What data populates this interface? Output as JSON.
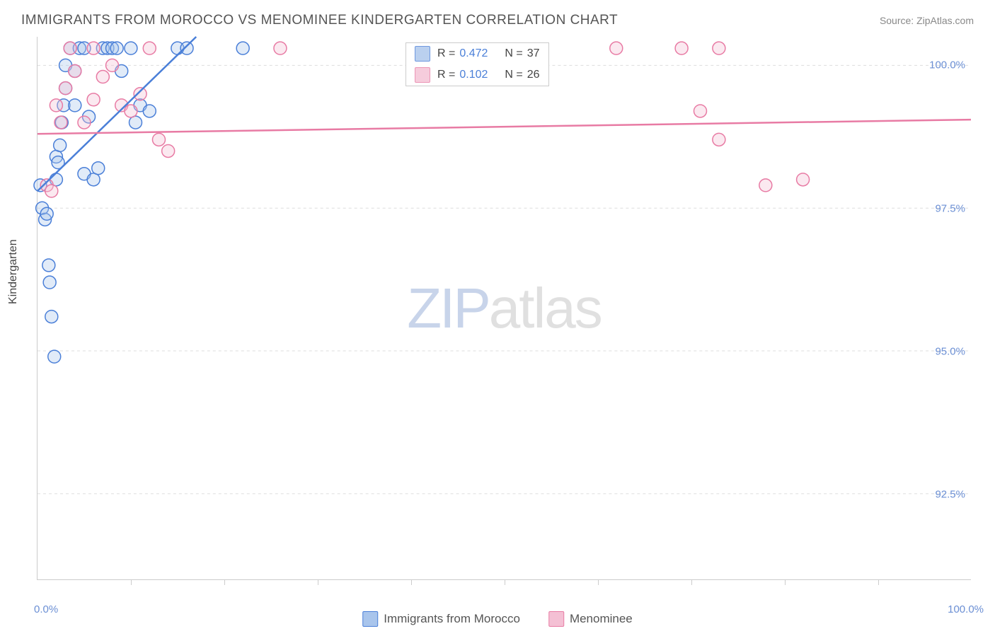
{
  "title": "IMMIGRANTS FROM MOROCCO VS MENOMINEE KINDERGARTEN CORRELATION CHART",
  "source": "Source: ZipAtlas.com",
  "ylabel": "Kindergarten",
  "watermark": {
    "part1": "ZIP",
    "part2": "atlas"
  },
  "chart": {
    "type": "scatter",
    "xlim": [
      0,
      100
    ],
    "ylim": [
      91.0,
      100.5
    ],
    "yticks": [
      {
        "value": 100.0,
        "label": "100.0%"
      },
      {
        "value": 97.5,
        "label": "97.5%"
      },
      {
        "value": 95.0,
        "label": "95.0%"
      },
      {
        "value": 92.5,
        "label": "92.5%"
      }
    ],
    "xaxis": {
      "min_label": "0.0%",
      "max_label": "100.0%",
      "tick_positions": [
        10,
        20,
        30,
        40,
        50,
        60,
        70,
        80,
        90
      ]
    },
    "background_color": "#ffffff",
    "grid_color": "#dddddd",
    "marker_radius": 9,
    "marker_stroke_width": 1.5,
    "marker_fill_opacity": 0.35,
    "line_width": 2.5,
    "series": [
      {
        "name": "Immigrants from Morocco",
        "color_stroke": "#4a7fd8",
        "color_fill": "#a9c5ec",
        "R": "0.472",
        "N": "37",
        "trend": {
          "x1": 0,
          "y1": 97.8,
          "x2": 17,
          "y2": 100.5
        },
        "points": [
          [
            0.3,
            97.9
          ],
          [
            0.5,
            97.5
          ],
          [
            0.8,
            97.3
          ],
          [
            1.0,
            97.4
          ],
          [
            1.2,
            96.5
          ],
          [
            1.3,
            96.2
          ],
          [
            1.5,
            95.6
          ],
          [
            1.8,
            94.9
          ],
          [
            2.0,
            98.0
          ],
          [
            2.0,
            98.4
          ],
          [
            2.2,
            98.3
          ],
          [
            2.4,
            98.6
          ],
          [
            2.6,
            99.0
          ],
          [
            2.8,
            99.3
          ],
          [
            3.0,
            99.6
          ],
          [
            3.0,
            100.0
          ],
          [
            3.5,
            100.3
          ],
          [
            4.0,
            99.3
          ],
          [
            4.0,
            99.9
          ],
          [
            4.5,
            100.3
          ],
          [
            5.0,
            98.1
          ],
          [
            5.0,
            100.3
          ],
          [
            5.5,
            99.1
          ],
          [
            6.0,
            98.0
          ],
          [
            6.5,
            98.2
          ],
          [
            7.0,
            100.3
          ],
          [
            7.5,
            100.3
          ],
          [
            8.0,
            100.3
          ],
          [
            8.5,
            100.3
          ],
          [
            9.0,
            99.9
          ],
          [
            10.0,
            100.3
          ],
          [
            10.5,
            99.0
          ],
          [
            11.0,
            99.3
          ],
          [
            12.0,
            99.2
          ],
          [
            15.0,
            100.3
          ],
          [
            16.0,
            100.3
          ],
          [
            22.0,
            100.3
          ]
        ]
      },
      {
        "name": "Menominee",
        "color_stroke": "#e87ba4",
        "color_fill": "#f4c0d4",
        "R": "0.102",
        "N": "26",
        "trend": {
          "x1": 0,
          "y1": 98.8,
          "x2": 100,
          "y2": 99.05
        },
        "points": [
          [
            1.0,
            97.9
          ],
          [
            1.5,
            97.8
          ],
          [
            2.0,
            99.3
          ],
          [
            2.5,
            99.0
          ],
          [
            3.0,
            99.6
          ],
          [
            3.5,
            100.3
          ],
          [
            4.0,
            99.9
          ],
          [
            5.0,
            99.0
          ],
          [
            6.0,
            100.3
          ],
          [
            6.0,
            99.4
          ],
          [
            7.0,
            99.8
          ],
          [
            8.0,
            100.0
          ],
          [
            9.0,
            99.3
          ],
          [
            10.0,
            99.2
          ],
          [
            11.0,
            99.5
          ],
          [
            12.0,
            100.3
          ],
          [
            13.0,
            98.7
          ],
          [
            14.0,
            98.5
          ],
          [
            26.0,
            100.3
          ],
          [
            62.0,
            100.3
          ],
          [
            69.0,
            100.3
          ],
          [
            71.0,
            99.2
          ],
          [
            73.0,
            100.3
          ],
          [
            73.0,
            98.7
          ],
          [
            78.0,
            97.9
          ],
          [
            82.0,
            98.0
          ]
        ]
      }
    ]
  },
  "legend": {
    "series1_label": "Immigrants from Morocco",
    "series2_label": "Menominee"
  }
}
